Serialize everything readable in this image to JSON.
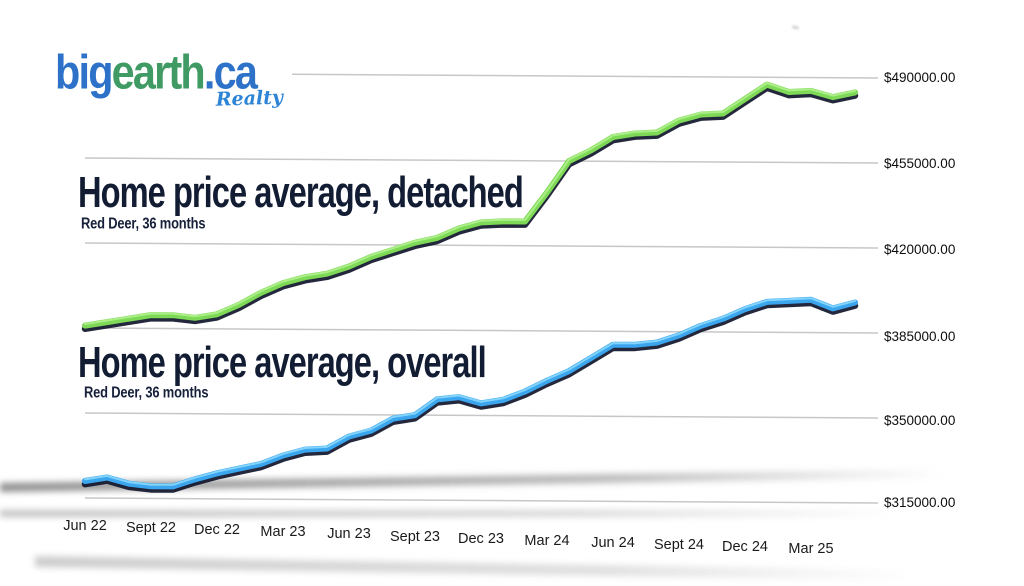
{
  "brand": {
    "part_big": "big",
    "part_earth": "earth",
    "part_ca": ".ca",
    "tagline": "Realty",
    "blue": "#2d72c8",
    "green": "#3f9a63",
    "tagline_color": "#2d84d6"
  },
  "titles": [
    {
      "title": "Home price average, detached",
      "subtitle": "Red Deer, 36 months"
    },
    {
      "title": "Home price average, overall",
      "subtitle": "Red Deer, 36 months"
    }
  ],
  "chart_data": {
    "type": "line",
    "location": "Red Deer, 36 months",
    "x_tick_labels": [
      "Jun 22",
      "Sept 22",
      "Dec 22",
      "Mar 23",
      "Jun 23",
      "Sept 23",
      "Dec 23",
      "Mar 24",
      "Jun 24",
      "Sept 24",
      "Dec 24",
      "Mar 25"
    ],
    "months": [
      "Jun 22",
      "Jul 22",
      "Aug 22",
      "Sep 22",
      "Oct 22",
      "Nov 22",
      "Dec 22",
      "Jan 23",
      "Feb 23",
      "Mar 23",
      "Apr 23",
      "May 23",
      "Jun 23",
      "Jul 23",
      "Aug 23",
      "Sep 23",
      "Oct 23",
      "Nov 23",
      "Dec 23",
      "Jan 24",
      "Feb 24",
      "Mar 24",
      "Apr 24",
      "May 24",
      "Jun 24",
      "Jul 24",
      "Aug 24",
      "Sep 24",
      "Oct 24",
      "Nov 24",
      "Dec 24",
      "Jan 25",
      "Feb 25",
      "Mar 25",
      "Apr 25",
      "May 25"
    ],
    "y_tick_labels": [
      "$490000.00",
      "$455000.00",
      "$420000.00",
      "$385000.00",
      "$350000.00",
      "$315000.00"
    ],
    "y_ticks": [
      490000,
      455000,
      420000,
      385000,
      350000,
      315000
    ],
    "ylim": [
      315000,
      490000
    ],
    "grid": true,
    "legend": "none",
    "series": [
      {
        "name": "Home price average, detached",
        "subtitle": "Red Deer, 36 months",
        "color": "#7ed957",
        "values": [
          386000,
          387500,
          389000,
          390500,
          390500,
          389500,
          391000,
          395000,
          400000,
          404000,
          406500,
          408000,
          411000,
          415000,
          418000,
          421000,
          423000,
          427000,
          429500,
          430000,
          430000,
          442000,
          455000,
          459500,
          465000,
          466500,
          467000,
          472000,
          474500,
          475000,
          481000,
          487000,
          484000,
          484500,
          482000,
          484000
        ]
      },
      {
        "name": "Home price average, overall",
        "subtitle": "Red Deer, 36 months",
        "color": "#3ba6ee",
        "values": [
          322000,
          323500,
          321000,
          320000,
          320000,
          323000,
          325500,
          327500,
          329500,
          333000,
          335500,
          336000,
          341000,
          343500,
          348500,
          350000,
          356500,
          357500,
          355000,
          356500,
          360000,
          364500,
          368500,
          374000,
          379500,
          379500,
          380500,
          383500,
          387500,
          390500,
          394500,
          397500,
          398000,
          398500,
          395000,
          397500
        ]
      }
    ]
  }
}
